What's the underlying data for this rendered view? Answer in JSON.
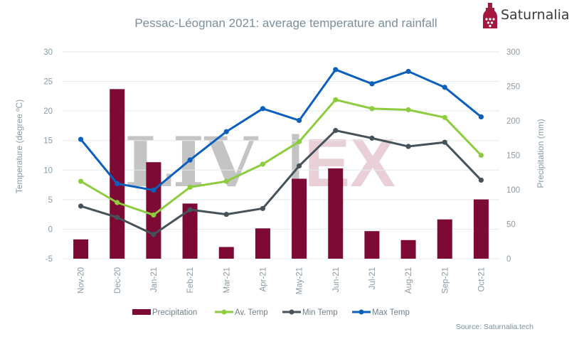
{
  "title": "Pessac-Léognan 2021: average temperature and rainfall",
  "brand": {
    "name": "Saturnalia",
    "color": "#a3183f"
  },
  "watermark": {
    "left": "LIV",
    "separator": "|",
    "right": "EX"
  },
  "source": "Source: Saturnalia.tech",
  "chart_data": {
    "type": "bar+line",
    "categories": [
      "Nov-20",
      "Dec-20",
      "Jan-21",
      "Feb-21",
      "Mar-21",
      "Apr-21",
      "May-21",
      "Jun-21",
      "Jul-21",
      "Aug-21",
      "Sep-21",
      "Oct-21"
    ],
    "y_left": {
      "label": "Temperature (degree ºC)",
      "range": [
        -5,
        30
      ],
      "ticks": [
        -5,
        0,
        5,
        10,
        15,
        20,
        25,
        30
      ]
    },
    "y_right": {
      "label": "Precipitation (mm)",
      "range": [
        0,
        300
      ],
      "ticks": [
        0,
        50,
        100,
        150,
        200,
        250,
        300
      ]
    },
    "series": [
      {
        "name": "Precipitation",
        "type": "bar",
        "axis": "right",
        "color": "#7d0a35",
        "values": [
          28,
          246,
          140,
          80,
          17,
          44,
          116,
          131,
          40,
          27,
          57,
          86
        ]
      },
      {
        "name": "Av. Temp",
        "type": "line",
        "axis": "left",
        "color": "#8ccc3e",
        "values": [
          8.1,
          4.5,
          2.4,
          7.1,
          8.1,
          11.0,
          14.8,
          21.9,
          20.4,
          20.2,
          18.9,
          12.5
        ]
      },
      {
        "name": "Min Temp",
        "type": "line",
        "axis": "left",
        "color": "#45525a",
        "values": [
          3.9,
          2.0,
          -0.9,
          3.3,
          2.5,
          3.5,
          10.7,
          16.7,
          15.4,
          14.0,
          14.7,
          8.3
        ]
      },
      {
        "name": "Max Temp",
        "type": "line",
        "axis": "left",
        "color": "#0b5fbd",
        "values": [
          15.2,
          7.7,
          6.6,
          11.7,
          16.5,
          20.4,
          18.4,
          27.0,
          24.6,
          26.7,
          24.0,
          19.0
        ]
      }
    ],
    "grid": true,
    "legend_position": "bottom"
  }
}
